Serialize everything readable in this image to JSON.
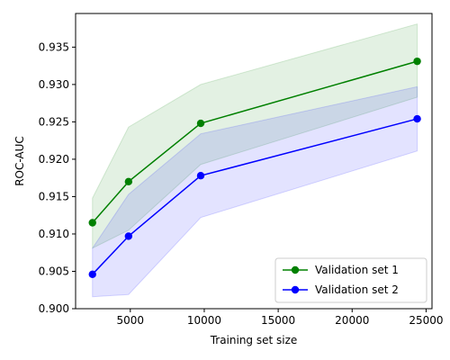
{
  "chart_data": {
    "type": "line",
    "title": "",
    "xlabel": "Training set size",
    "ylabel": "ROC-AUC",
    "xlim": [
      1300,
      25400
    ],
    "ylim": [
      0.9,
      0.9395
    ],
    "x_ticks": [
      5000,
      10000,
      15000,
      20000,
      25000
    ],
    "x_tick_labels": [
      "5000",
      "10000",
      "15000",
      "20000",
      "25000"
    ],
    "y_ticks": [
      0.9,
      0.905,
      0.91,
      0.915,
      0.92,
      0.925,
      0.93,
      0.935
    ],
    "y_tick_labels": [
      "0.900",
      "0.905",
      "0.910",
      "0.915",
      "0.920",
      "0.925",
      "0.930",
      "0.935"
    ],
    "grid": false,
    "legend_position": "lower-right",
    "x": [
      2440,
      4880,
      9760,
      24400
    ],
    "series": [
      {
        "name": "Validation set 1",
        "color": "#008000",
        "values": [
          0.9115,
          0.917,
          0.9248,
          0.9331
        ],
        "band_lower": [
          0.9081,
          0.9105,
          0.9193,
          0.9283
        ],
        "band_upper": [
          0.9148,
          0.9243,
          0.93,
          0.9381
        ]
      },
      {
        "name": "Validation set 2",
        "color": "#0000ff",
        "values": [
          0.9046,
          0.9097,
          0.9178,
          0.9254
        ],
        "band_lower": [
          0.9016,
          0.9019,
          0.9122,
          0.9211
        ],
        "band_upper": [
          0.9081,
          0.9153,
          0.9234,
          0.9297
        ]
      }
    ]
  }
}
